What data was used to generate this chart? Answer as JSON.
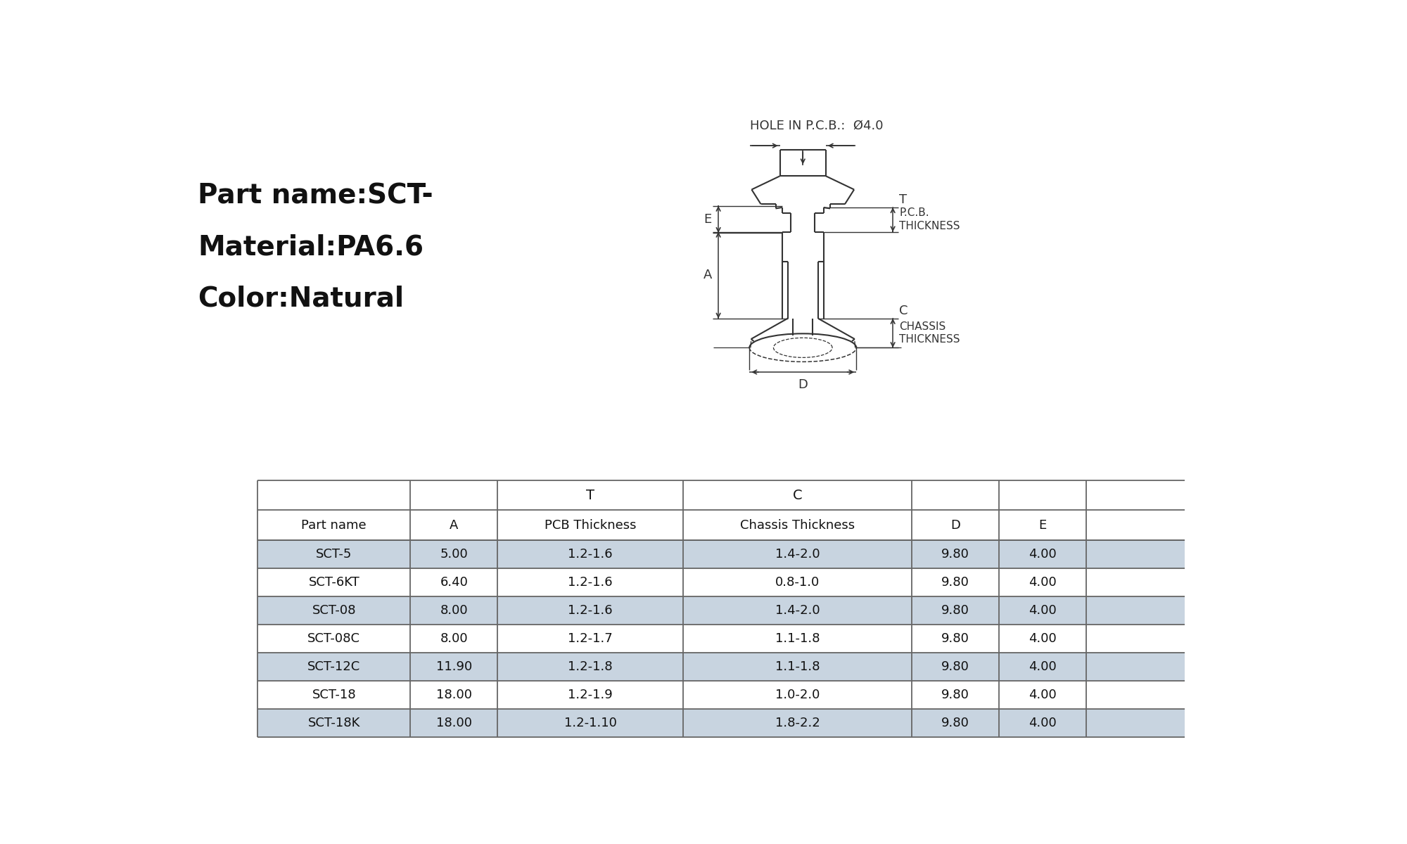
{
  "part_name_label": "Part name:SCT-",
  "material_label": "Material:PA6.6",
  "color_label": "Color:Natural",
  "hole_label": "HOLE IN P.C.B.:  Ø4.0",
  "diagram_labels": {
    "E": "E",
    "T": "T",
    "A": "A",
    "C": "C",
    "D": "D",
    "PCB_THICKNESS": "P.C.B.\nTHICKNESS",
    "CHASSIS_THICKNESS": "CHASSIS\nTHICKNESS"
  },
  "table_data": [
    [
      "SCT-5",
      "5.00",
      "1.2-1.6",
      "1.4-2.0",
      "9.80",
      "4.00"
    ],
    [
      "SCT-6KT",
      "6.40",
      "1.2-1.6",
      "0.8-1.0",
      "9.80",
      "4.00"
    ],
    [
      "SCT-08",
      "8.00",
      "1.2-1.6",
      "1.4-2.0",
      "9.80",
      "4.00"
    ],
    [
      "SCT-08C",
      "8.00",
      "1.2-1.7",
      "1.1-1.8",
      "9.80",
      "4.00"
    ],
    [
      "SCT-12C",
      "11.90",
      "1.2-1.8",
      "1.1-1.8",
      "9.80",
      "4.00"
    ],
    [
      "SCT-18",
      "18.00",
      "1.2-1.9",
      "1.0-2.0",
      "9.80",
      "4.00"
    ],
    [
      "SCT-18K",
      "18.00",
      "1.2-1.10",
      "1.8-2.2",
      "9.80",
      "4.00"
    ]
  ],
  "shaded_rows": [
    0,
    2,
    4,
    6
  ],
  "row_shade_color": "#c8d4e0",
  "table_border_color": "#666666",
  "bg_color": "#ffffff",
  "text_color": "#111111",
  "diagram_color": "#333333"
}
